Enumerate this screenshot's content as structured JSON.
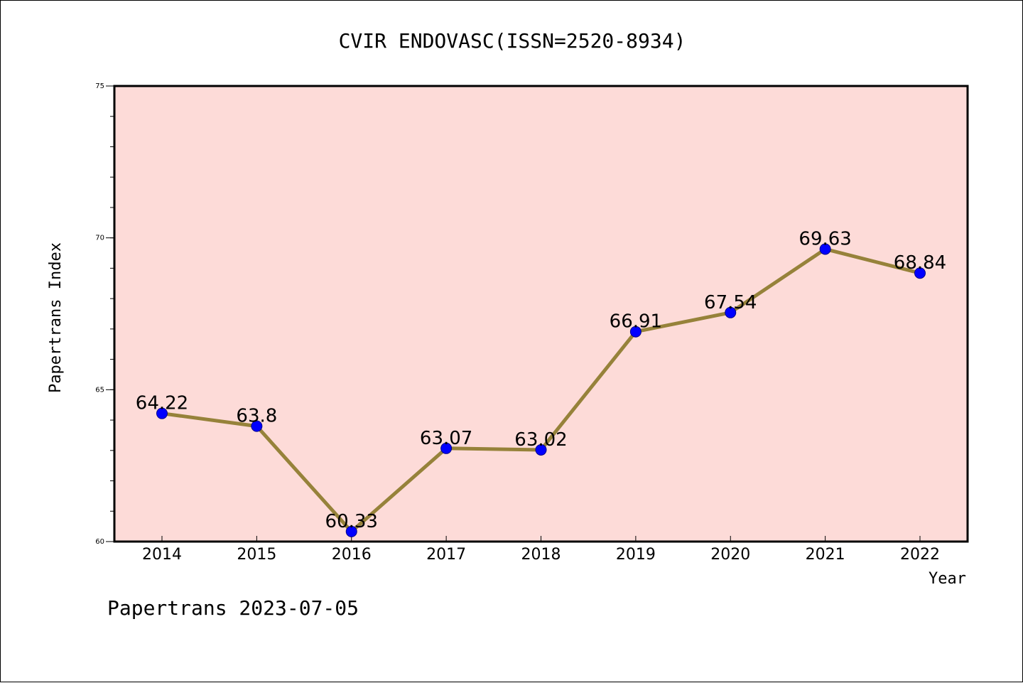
{
  "chart_data": {
    "type": "line",
    "title": "CVIR ENDOVASC(ISSN=2520-8934)",
    "xlabel": "Year",
    "ylabel": "Papertrans Index",
    "categories": [
      "2014",
      "2015",
      "2016",
      "2017",
      "2018",
      "2019",
      "2020",
      "2021",
      "2022"
    ],
    "series": [
      {
        "values": [
          64.22,
          63.8,
          60.33,
          63.07,
          63.02,
          66.91,
          67.54,
          69.63,
          68.84
        ],
        "labels": [
          "64.22",
          "63.8",
          "60.33",
          "63.07",
          "63.02",
          "66.91",
          "67.54",
          "69.63",
          "68.84"
        ]
      }
    ],
    "ylim": [
      60,
      75
    ],
    "yticks": [
      "60",
      "65",
      "70",
      "75"
    ],
    "grid": false,
    "legend": "none",
    "colors": {
      "plot_background": "#fddbd8",
      "line": "#96823a",
      "marker": "#0000ff"
    }
  },
  "footer": {
    "text": "Papertrans 2023-07-05"
  }
}
